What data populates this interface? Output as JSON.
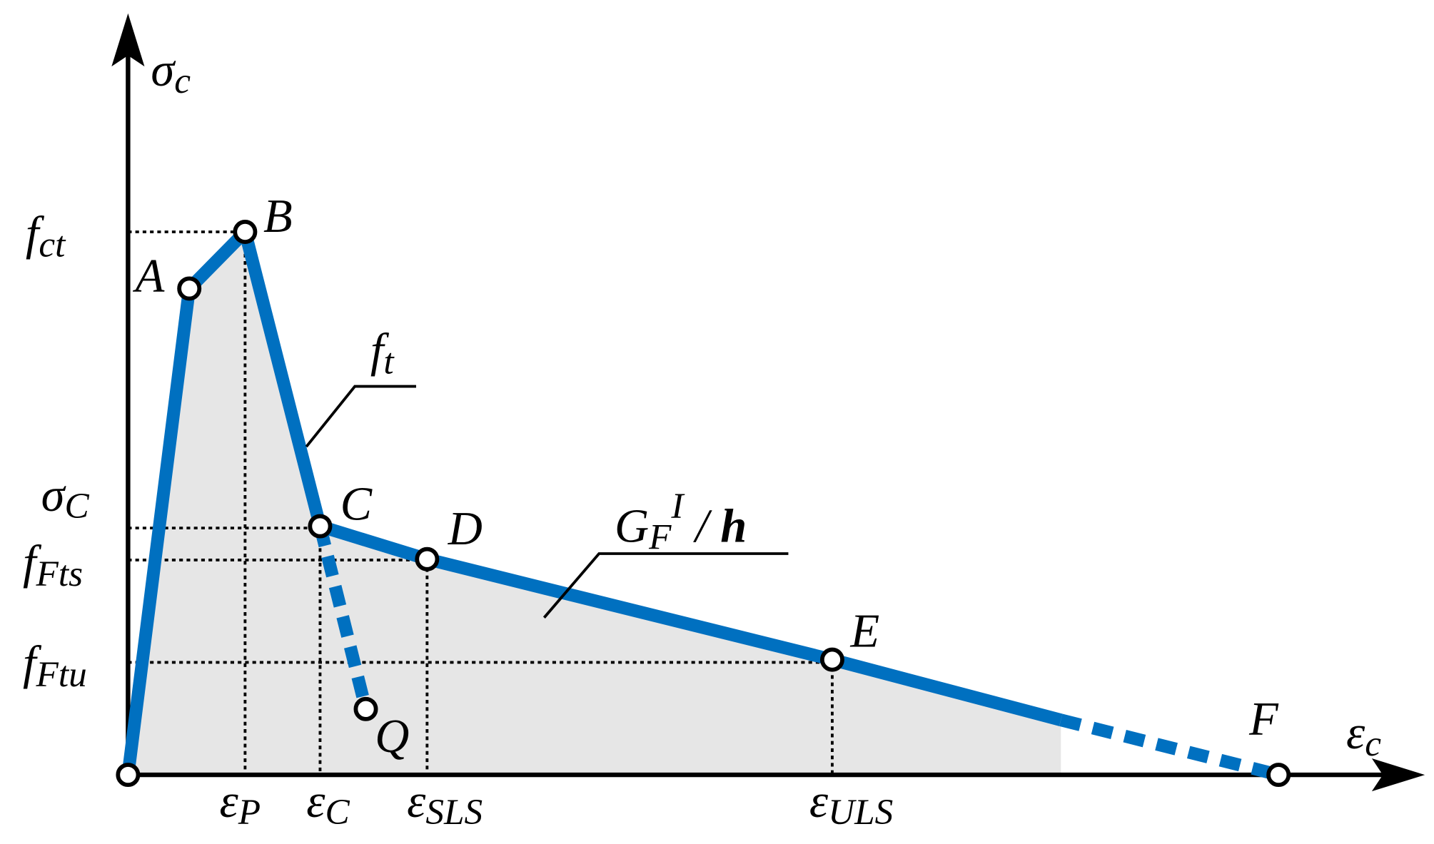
{
  "axes": {
    "y": {
      "main": "σ",
      "sub": "c"
    },
    "x": {
      "main": "ε",
      "sub": "c"
    }
  },
  "stress_labels": [
    {
      "main": "f",
      "sub": "ct"
    },
    {
      "main": "σ",
      "sub": "C"
    },
    {
      "main": "f",
      "sub": "Fts"
    },
    {
      "main": "f",
      "sub": "Ftu"
    }
  ],
  "strain_labels": [
    {
      "main": "ε",
      "sub": "P"
    },
    {
      "main": "ε",
      "sub": "C"
    },
    {
      "main": "ε",
      "sub": "SLS"
    },
    {
      "main": "ε",
      "sub": "ULS"
    }
  ],
  "points": [
    "A",
    "B",
    "C",
    "D",
    "E",
    "F",
    "Q"
  ],
  "annotations": {
    "ft": {
      "main": "f",
      "sub": "t"
    },
    "energy": {
      "main": "G",
      "sub": "F",
      "sup": "I",
      "rest": " / ",
      "h": "h"
    }
  }
}
